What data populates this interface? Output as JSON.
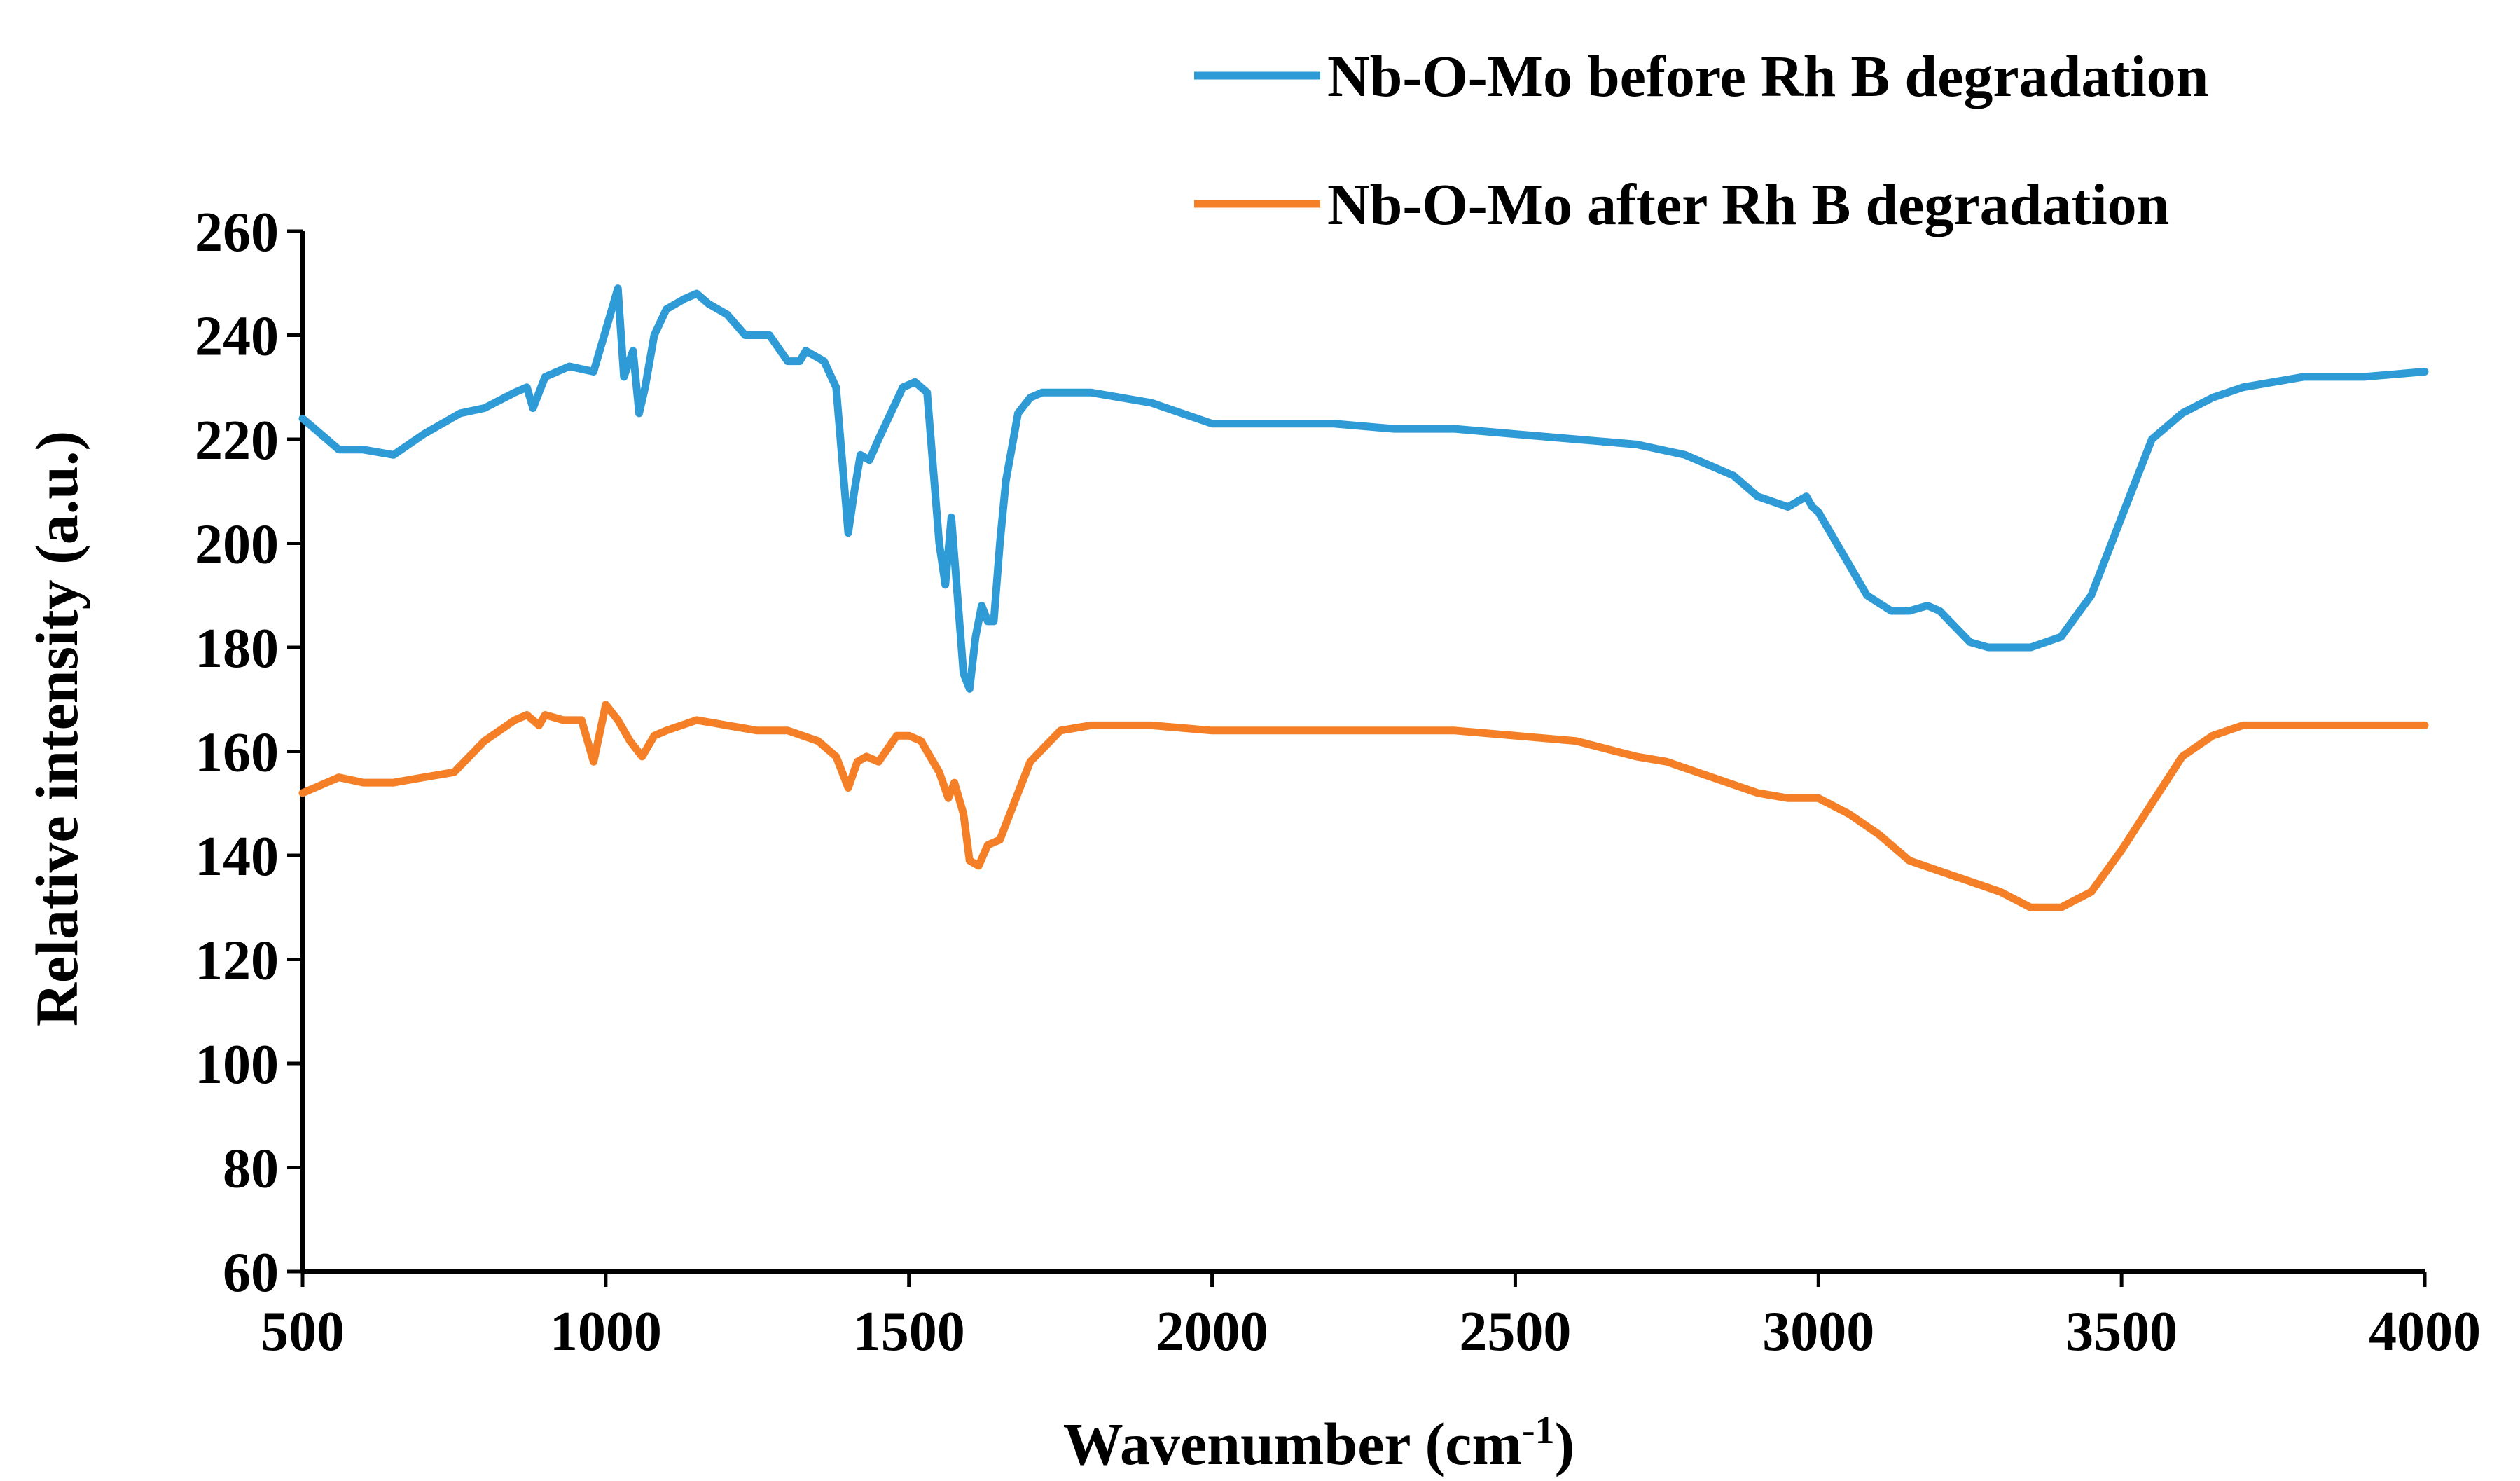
{
  "chart_data": {
    "type": "line",
    "title": "",
    "xlabel": "Wavenumber (cm",
    "xlabel_superscript": "-1",
    "xlabel_close": ")",
    "ylabel": "Relative intensity  (a.u.)",
    "xlim": [
      500,
      4000
    ],
    "ylim": [
      60,
      260
    ],
    "xticks": [
      500,
      1000,
      1500,
      2000,
      2500,
      3000,
      3500,
      4000
    ],
    "yticks": [
      60,
      80,
      100,
      120,
      140,
      160,
      180,
      200,
      220,
      240,
      260
    ],
    "grid": false,
    "legend_position": "top-right",
    "series": [
      {
        "name": "Nb-O-Mo before Rh B degradation",
        "color": "#2E9BD6",
        "x": [
          500,
          520,
          560,
          600,
          650,
          700,
          760,
          800,
          850,
          870,
          880,
          900,
          940,
          980,
          1000,
          1020,
          1030,
          1045,
          1055,
          1065,
          1080,
          1100,
          1130,
          1150,
          1170,
          1200,
          1230,
          1250,
          1270,
          1300,
          1320,
          1330,
          1360,
          1380,
          1400,
          1410,
          1420,
          1435,
          1450,
          1470,
          1490,
          1510,
          1530,
          1550,
          1560,
          1570,
          1580,
          1590,
          1600,
          1610,
          1620,
          1630,
          1640,
          1650,
          1660,
          1680,
          1700,
          1720,
          1760,
          1800,
          1900,
          2000,
          2100,
          2200,
          2300,
          2400,
          2500,
          2600,
          2700,
          2780,
          2800,
          2820,
          2860,
          2900,
          2950,
          2980,
          2990,
          3000,
          3050,
          3080,
          3120,
          3150,
          3180,
          3200,
          3250,
          3280,
          3300,
          3350,
          3400,
          3450,
          3500,
          3550,
          3600,
          3650,
          3700,
          3800,
          3900,
          4000
        ],
        "y": [
          224,
          222,
          218,
          218,
          217,
          221,
          225,
          226,
          229,
          230,
          226,
          232,
          234,
          233,
          241,
          249,
          232,
          237,
          225,
          230,
          240,
          245,
          247,
          248,
          246,
          244,
          240,
          240,
          240,
          235,
          235,
          237,
          235,
          230,
          202,
          210,
          217,
          216,
          220,
          225,
          230,
          231,
          229,
          200,
          192,
          205,
          190,
          175,
          172,
          182,
          188,
          185,
          185,
          200,
          212,
          225,
          228,
          229,
          229,
          229,
          227,
          223,
          223,
          223,
          222,
          222,
          221,
          220,
          219,
          217,
          216,
          215,
          213,
          209,
          207,
          209,
          207,
          206,
          196,
          190,
          187,
          187,
          188,
          187,
          181,
          180,
          180,
          180,
          182,
          190,
          205,
          220,
          225,
          228,
          230,
          232,
          232,
          233
        ]
      },
      {
        "name": "Nb-O-Mo after Rh B degradation",
        "color": "#F47F26",
        "x": [
          500,
          520,
          560,
          600,
          650,
          700,
          750,
          800,
          850,
          870,
          890,
          900,
          930,
          960,
          980,
          1000,
          1020,
          1040,
          1060,
          1080,
          1100,
          1150,
          1200,
          1250,
          1300,
          1350,
          1380,
          1400,
          1415,
          1430,
          1450,
          1480,
          1500,
          1520,
          1550,
          1565,
          1575,
          1590,
          1600,
          1615,
          1630,
          1650,
          1680,
          1700,
          1750,
          1800,
          1900,
          2000,
          2200,
          2400,
          2500,
          2600,
          2700,
          2750,
          2800,
          2850,
          2900,
          2950,
          3000,
          3050,
          3100,
          3150,
          3200,
          3250,
          3300,
          3350,
          3400,
          3450,
          3500,
          3550,
          3600,
          3650,
          3700,
          3750,
          3800,
          4000
        ],
        "y": [
          152,
          153,
          155,
          154,
          154,
          155,
          156,
          162,
          166,
          167,
          165,
          167,
          166,
          166,
          158,
          169,
          166,
          162,
          159,
          163,
          164,
          166,
          165,
          164,
          164,
          162,
          159,
          153,
          158,
          159,
          158,
          163,
          163,
          162,
          156,
          151,
          154,
          148,
          139,
          138,
          142,
          143,
          152,
          158,
          164,
          165,
          165,
          164,
          164,
          164,
          163,
          162,
          159,
          158,
          156,
          154,
          152,
          151,
          151,
          148,
          144,
          139,
          137,
          135,
          133,
          130,
          130,
          133,
          141,
          150,
          159,
          163,
          165,
          165,
          165,
          165
        ]
      }
    ]
  }
}
